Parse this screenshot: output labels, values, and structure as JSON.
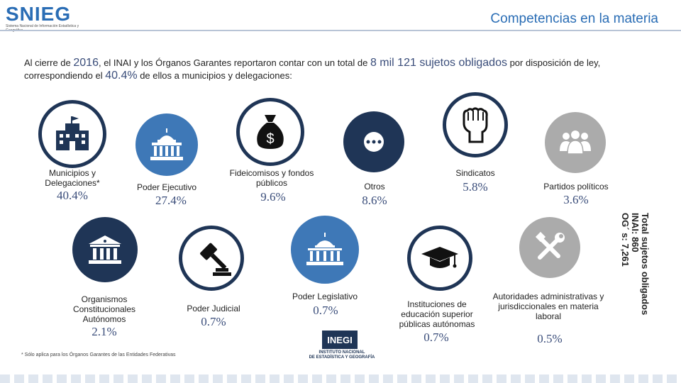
{
  "header": {
    "logo_text": "SNIEG",
    "logo_subtitle": "Sistema Nacional de Información Estadística y Geográfica",
    "title": "Competencias en la materia"
  },
  "intro": {
    "part1": "Al cierre de ",
    "year": "2016",
    "part2": ", el INAI y los Órganos Garantes reportaron contar con un total de ",
    "total": "8 mil 121 sujetos obligados",
    "part3": " por disposición de ley, correspondiendo el ",
    "share": "40.4%",
    "part4": " de ellos a municipios y delegaciones:"
  },
  "categories": {
    "municipios": {
      "label": "Municipios y Delegaciones*",
      "value": "40.4%",
      "icon": "city-hall-icon"
    },
    "ejecutivo": {
      "label": "Poder Ejecutivo",
      "value": "27.4%",
      "icon": "government-building-icon"
    },
    "fideicomisos": {
      "label": "Fideicomisos y fondos públicos",
      "value": "9.6%",
      "icon": "money-bag-icon"
    },
    "otros": {
      "label": "Otros",
      "value": "8.6%",
      "icon": "ellipsis-icon"
    },
    "sindicatos": {
      "label": "Sindicatos",
      "value": "5.8%",
      "icon": "raised-fist-icon"
    },
    "partidos": {
      "label": "Partidos políticos",
      "value": "3.6%",
      "icon": "group-icon"
    },
    "autonomos": {
      "label": "Organismos Constitucionales Autónomos",
      "value": "2.1%",
      "icon": "institution-icon"
    },
    "judicial": {
      "label": "Poder Judicial",
      "value": "0.7%",
      "icon": "gavel-icon"
    },
    "legislativo": {
      "label": "Poder Legislativo",
      "value": "0.7%",
      "icon": "capitol-icon"
    },
    "educacion": {
      "label": "Instituciones de educación superior públicas autónomas",
      "value": "0.7%",
      "icon": "graduation-cap-icon"
    },
    "laboral": {
      "label": "Autoridades administrativas y jurisdiccionales en materia laboral",
      "value": "0.5%",
      "icon": "tools-icon"
    }
  },
  "totals": {
    "title": "Total sujetos obligados",
    "inai": "INAI: 860",
    "og": "OG´ s: 7,261"
  },
  "footnote": "* Sólo aplica para los Órganos Garantes de las Entidades Federativas",
  "inegi": {
    "mark": "INEGI",
    "line1": "INSTITUTO NACIONAL",
    "line2": "DE ESTADÍSTICA Y GEOGRAFÍA"
  },
  "colors": {
    "accent": "#2a6db5",
    "dark": "#1f3556",
    "blue": "#3e78b7",
    "gray": "#ababab"
  }
}
